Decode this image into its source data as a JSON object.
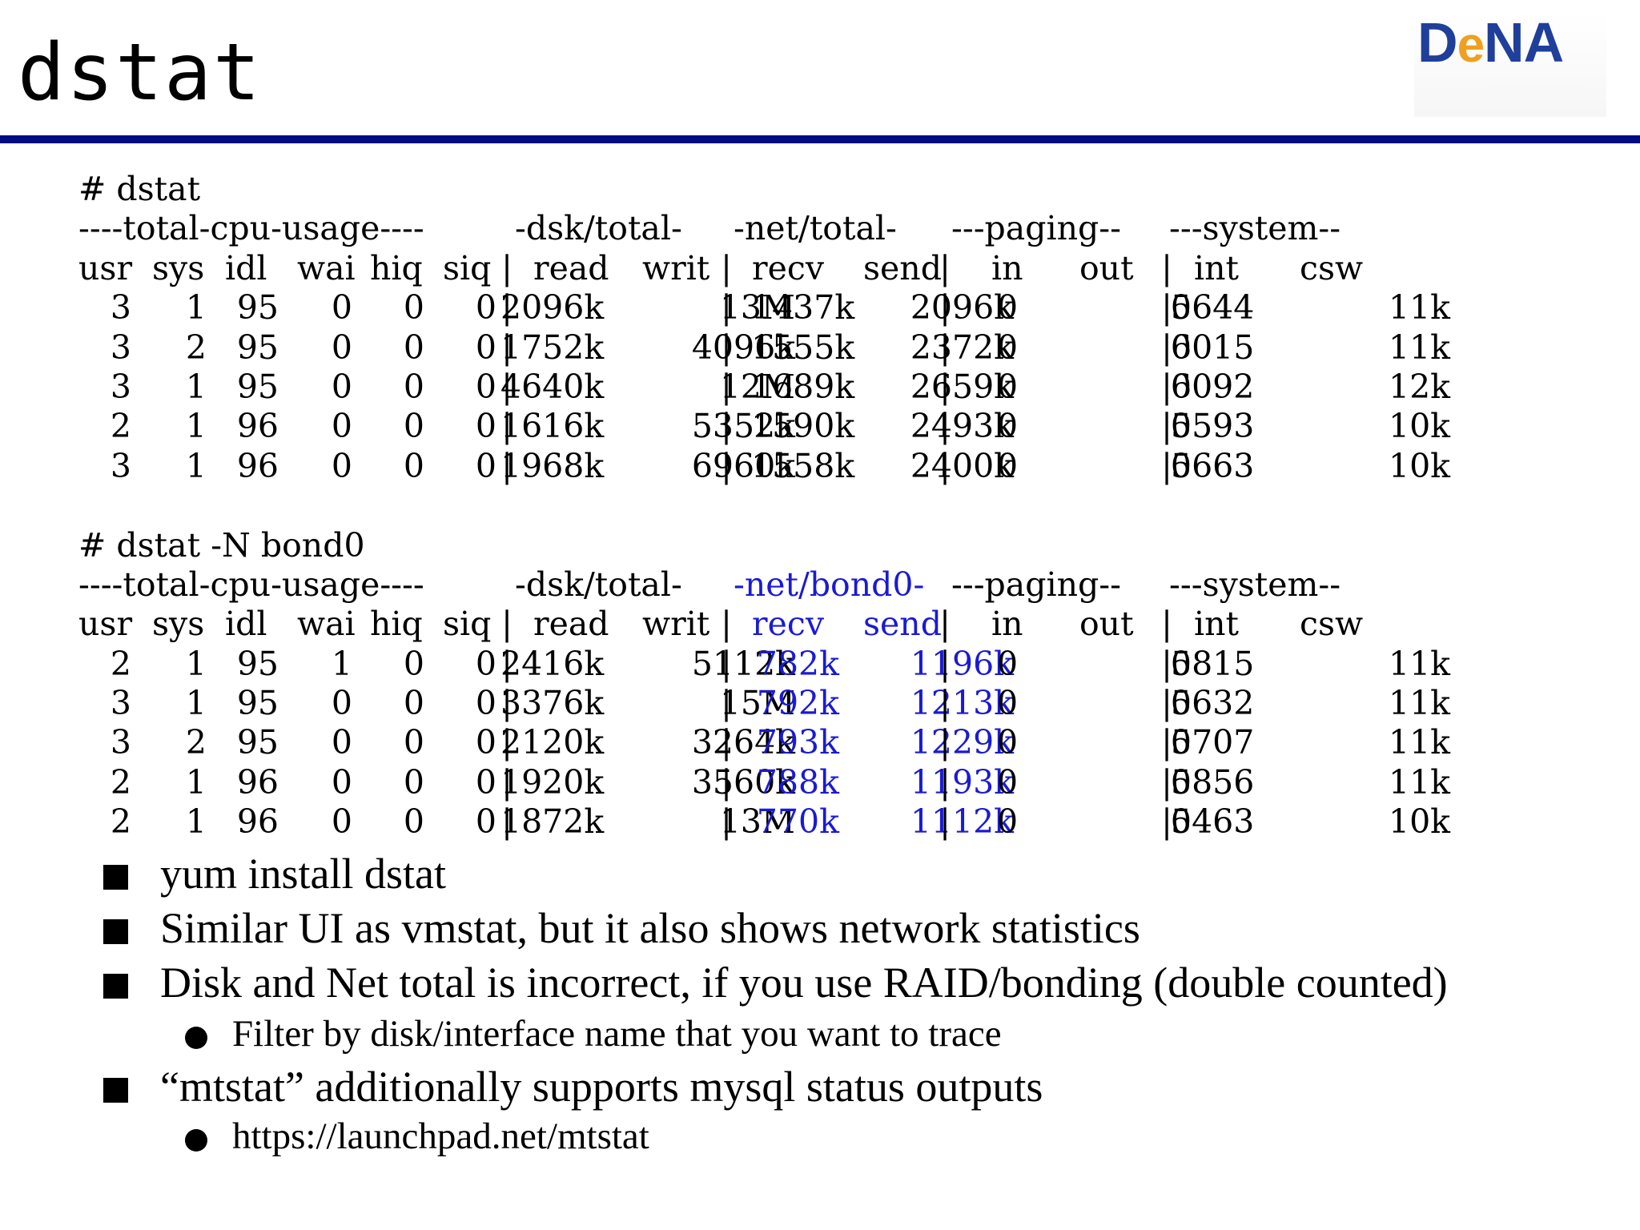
{
  "slide": {
    "title": "dstat"
  },
  "logo": {
    "brand_d": "D",
    "brand_e": "e",
    "brand_na": "NA"
  },
  "terminal": {
    "block1": {
      "command": "# dstat",
      "groups": [
        "----total-cpu-usage----",
        "-dsk/total-",
        "-net/total-",
        "---paging--",
        "---system--"
      ],
      "headers": [
        "usr",
        "sys",
        "idl",
        "wai",
        "hiq",
        "siq",
        "read",
        "writ",
        "recv",
        "send",
        "in",
        "out",
        "int",
        "csw"
      ],
      "rows": [
        [
          "3",
          "1",
          "95",
          "0",
          "0",
          "0",
          "2096k",
          "13M",
          "1437k",
          "2096k",
          "0",
          "0",
          "5644",
          "11k"
        ],
        [
          "3",
          "2",
          "95",
          "0",
          "0",
          "0",
          "1752k",
          "4096k",
          "1555k",
          "2372k",
          "0",
          "0",
          "6015",
          "11k"
        ],
        [
          "3",
          "1",
          "95",
          "0",
          "0",
          "0",
          "4640k",
          "12M",
          "1689k",
          "2659k",
          "0",
          "0",
          "6092",
          "12k"
        ],
        [
          "2",
          "1",
          "96",
          "0",
          "0",
          "0",
          "1616k",
          "5352k",
          "1590k",
          "2493k",
          "0",
          "0",
          "5593",
          "10k"
        ],
        [
          "3",
          "1",
          "96",
          "0",
          "0",
          "0",
          "1968k",
          "6960k",
          "1558k",
          "2400k",
          "0",
          "0",
          "5663",
          "10k"
        ]
      ]
    },
    "block2": {
      "command": "# dstat -N bond0",
      "groups": [
        "----total-cpu-usage----",
        "-dsk/total-",
        "-net/bond0-",
        "---paging--",
        "---system--"
      ],
      "headers": [
        "usr",
        "sys",
        "idl",
        "wai",
        "hiq",
        "siq",
        "read",
        "writ",
        "recv",
        "send",
        "in",
        "out",
        "int",
        "csw"
      ],
      "rows": [
        [
          "2",
          "1",
          "95",
          "1",
          "0",
          "0",
          "2416k",
          "5112k",
          "782k",
          "1196k",
          "0",
          "0",
          "5815",
          "11k"
        ],
        [
          "3",
          "1",
          "95",
          "0",
          "0",
          "0",
          "3376k",
          "15M",
          "792k",
          "1213k",
          "0",
          "0",
          "5632",
          "11k"
        ],
        [
          "3",
          "2",
          "95",
          "0",
          "0",
          "0",
          "2120k",
          "3264k",
          "793k",
          "1229k",
          "0",
          "0",
          "5707",
          "11k"
        ],
        [
          "2",
          "1",
          "96",
          "0",
          "0",
          "0",
          "1920k",
          "3560k",
          "788k",
          "1193k",
          "0",
          "0",
          "5856",
          "11k"
        ],
        [
          "2",
          "1",
          "96",
          "0",
          "0",
          "0",
          "1872k",
          "13M",
          "770k",
          "1112k",
          "0",
          "0",
          "5463",
          "10k"
        ]
      ]
    },
    "highlight_color": "#1a1ad4"
  },
  "bullets": [
    {
      "level": 1,
      "text": "yum install dstat"
    },
    {
      "level": 1,
      "text": "Similar UI as vmstat, but it also shows network statistics"
    },
    {
      "level": 1,
      "text": "Disk and Net total is incorrect, if you use RAID/bonding (double counted)"
    },
    {
      "level": 2,
      "text": "Filter by disk/interface name that you want to trace"
    },
    {
      "level": 1,
      "text": "“mtstat” additionally supports mysql status outputs"
    },
    {
      "level": 2,
      "text": "https://launchpad.net/mtstat"
    }
  ]
}
